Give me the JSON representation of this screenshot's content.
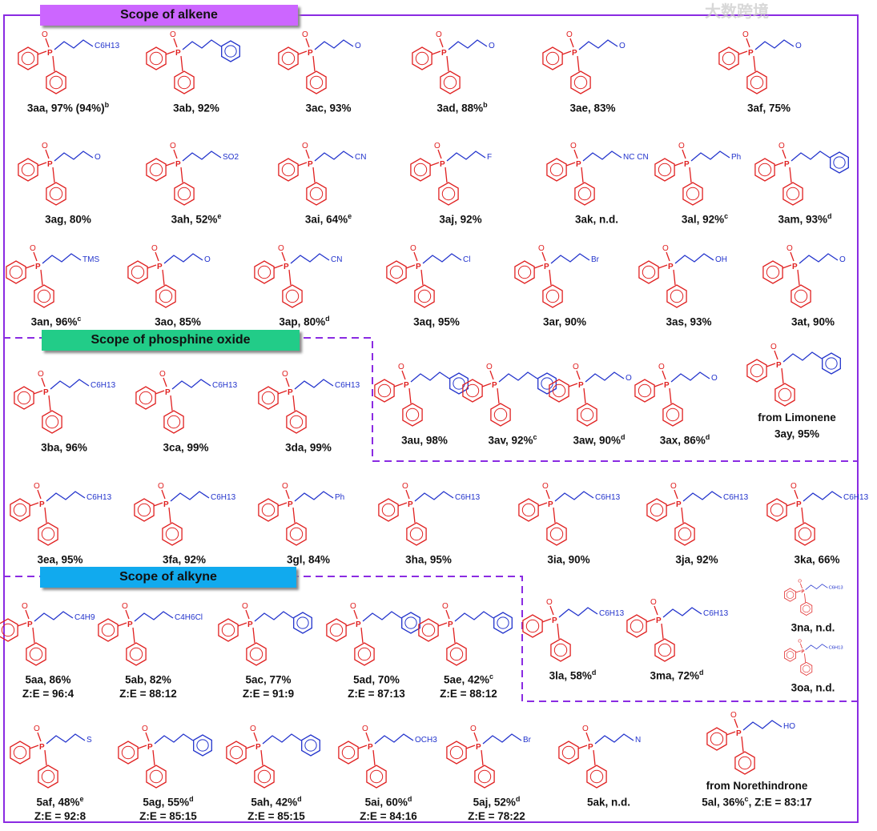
{
  "headers": {
    "alkene": "Scope of alkene",
    "phosphine": "Scope of phosphine oxide",
    "alkyne": "Scope of alkyne"
  },
  "colors": {
    "header_alkene": "#cc66ff",
    "header_phosphine": "#22cc88",
    "header_alkyne": "#11aaee",
    "frame": "#8a2be2",
    "aryl": "#e02020",
    "chain": "#2233cc"
  },
  "watermark": "大数跨境",
  "compounds": [
    {
      "id": "3aa",
      "label": "3aa, 97% (94%)",
      "sup": "b",
      "tag": "C6H13"
    },
    {
      "id": "3ab",
      "label": "3ab, 92%",
      "sup": "",
      "tag": ""
    },
    {
      "id": "3ac",
      "label": "3ac, 93%",
      "sup": "",
      "tag": "O"
    },
    {
      "id": "3ad",
      "label": "3ad, 88%",
      "sup": "b",
      "tag": "O"
    },
    {
      "id": "3ae",
      "label": "3ae, 83%",
      "sup": "",
      "tag": "O"
    },
    {
      "id": "3af",
      "label": "3af, 75%",
      "sup": "",
      "tag": "O"
    },
    {
      "id": "3ag",
      "label": "3ag, 80%",
      "sup": "",
      "tag": "O"
    },
    {
      "id": "3ah",
      "label": "3ah, 52%",
      "sup": "e",
      "tag": "SO2"
    },
    {
      "id": "3ai",
      "label": "3ai, 64%",
      "sup": "e",
      "tag": "CN"
    },
    {
      "id": "3aj",
      "label": "3aj, 92%",
      "sup": "",
      "tag": "F"
    },
    {
      "id": "3ak",
      "label": "3ak, n.d.",
      "sup": "",
      "tag": "NC CN"
    },
    {
      "id": "3al",
      "label": "3al, 92%",
      "sup": "c",
      "tag": "Ph"
    },
    {
      "id": "3am",
      "label": "3am, 93%",
      "sup": "d",
      "tag": ""
    },
    {
      "id": "3an",
      "label": "3an, 96%",
      "sup": "c",
      "tag": "TMS"
    },
    {
      "id": "3ao",
      "label": "3ao, 85%",
      "sup": "",
      "tag": "O"
    },
    {
      "id": "3ap",
      "label": "3ap, 80%",
      "sup": "d",
      "tag": "CN"
    },
    {
      "id": "3aq",
      "label": "3aq, 95%",
      "sup": "",
      "tag": "Cl"
    },
    {
      "id": "3ar",
      "label": "3ar, 90%",
      "sup": "",
      "tag": "Br"
    },
    {
      "id": "3as",
      "label": "3as, 93%",
      "sup": "",
      "tag": "OH"
    },
    {
      "id": "3at",
      "label": "3at, 90%",
      "sup": "",
      "tag": "O"
    },
    {
      "id": "3ba",
      "label": "3ba, 96%",
      "sup": "",
      "tag": "C6H13"
    },
    {
      "id": "3ca",
      "label": "3ca, 99%",
      "sup": "",
      "tag": "C6H13"
    },
    {
      "id": "3da",
      "label": "3da, 99%",
      "sup": "",
      "tag": "C6H13"
    },
    {
      "id": "3au",
      "label": "3au, 98%",
      "sup": "",
      "tag": ""
    },
    {
      "id": "3av",
      "label": "3av, 92%",
      "sup": "c",
      "tag": ""
    },
    {
      "id": "3aw",
      "label": "3aw, 90%",
      "sup": "d",
      "tag": "O"
    },
    {
      "id": "3ax",
      "label": "3ax, 86%",
      "sup": "d",
      "tag": "O"
    },
    {
      "id": "3ay",
      "pre": "from Limonene",
      "label": "3ay, 95%",
      "sup": "",
      "tag": ""
    },
    {
      "id": "3ea",
      "label": "3ea, 95%",
      "sup": "",
      "tag": "C6H13"
    },
    {
      "id": "3fa",
      "label": "3fa, 92%",
      "sup": "",
      "tag": "C6H13"
    },
    {
      "id": "3gl",
      "label": "3gl, 84%",
      "sup": "",
      "tag": "Ph"
    },
    {
      "id": "3ha",
      "label": "3ha, 95%",
      "sup": "",
      "tag": "C6H13"
    },
    {
      "id": "3ia",
      "label": "3ia, 90%",
      "sup": "",
      "tag": "C6H13"
    },
    {
      "id": "3ja",
      "label": "3ja, 92%",
      "sup": "",
      "tag": "C6H13"
    },
    {
      "id": "3ka",
      "label": "3ka, 66%",
      "sup": "",
      "tag": "C6H13"
    },
    {
      "id": "5aa",
      "label": "5aa, 86%",
      "sup": "",
      "post": "Z:E = 96:4",
      "tag": "C4H9"
    },
    {
      "id": "5ab",
      "label": "5ab, 82%",
      "sup": "",
      "post": "Z:E = 88:12",
      "tag": "C4H6Cl"
    },
    {
      "id": "5ac",
      "label": "5ac, 77%",
      "sup": "",
      "post": "Z:E = 91:9",
      "tag": ""
    },
    {
      "id": "5ad",
      "label": "5ad, 70%",
      "sup": "",
      "post": "Z:E = 87:13",
      "tag": ""
    },
    {
      "id": "5ae",
      "label": "5ae, 42%",
      "sup": "c",
      "post": "Z:E = 88:12",
      "tag": ""
    },
    {
      "id": "3la",
      "label": "3la, 58%",
      "sup": "d",
      "tag": "C6H13"
    },
    {
      "id": "3ma",
      "label": "3ma, 72%",
      "sup": "d",
      "tag": "C6H13"
    },
    {
      "id": "3na",
      "label": "3na, n.d.",
      "sup": "",
      "tag": "C6H13"
    },
    {
      "id": "3oa",
      "label": "3oa, n.d.",
      "sup": "",
      "tag": "C6H13"
    },
    {
      "id": "5af",
      "label": "5af, 48%",
      "sup": "e",
      "post": "Z:E = 92:8",
      "tag": "S"
    },
    {
      "id": "5ag",
      "label": "5ag, 55%",
      "sup": "d",
      "post": "Z:E = 85:15",
      "tag": ""
    },
    {
      "id": "5ah",
      "label": "5ah, 42%",
      "sup": "d",
      "post": "Z:E = 85:15",
      "tag": ""
    },
    {
      "id": "5ai",
      "label": "5ai, 60%",
      "sup": "d",
      "post": "Z:E = 84:16",
      "tag": "OCH3"
    },
    {
      "id": "5aj",
      "label": "5aj, 52%",
      "sup": "d",
      "post": "Z:E = 78:22",
      "tag": "Br"
    },
    {
      "id": "5ak",
      "label": "5ak, n.d.",
      "sup": "",
      "tag": "N"
    },
    {
      "id": "5al",
      "pre": "from Norethindrone",
      "label": "5al, 36%",
      "sup": "c",
      "post2": ", Z:E = 83:17",
      "tag": "HO"
    }
  ]
}
